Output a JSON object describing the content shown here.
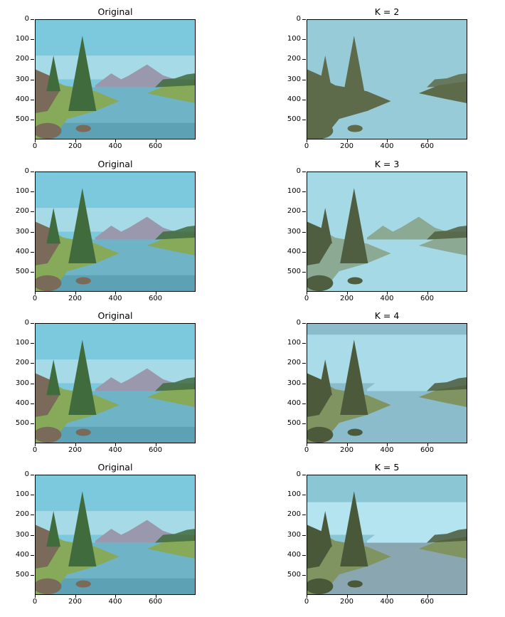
{
  "figure": {
    "panels": [
      {
        "title": "Original",
        "variant": "original"
      },
      {
        "title": "K = 2",
        "variant": "k2"
      },
      {
        "title": "Original",
        "variant": "original"
      },
      {
        "title": "K = 3",
        "variant": "k3"
      },
      {
        "title": "Original",
        "variant": "original"
      },
      {
        "title": "K = 4",
        "variant": "k4"
      },
      {
        "title": "Original",
        "variant": "original"
      },
      {
        "title": "K = 5",
        "variant": "k5"
      }
    ],
    "x_ticks": [
      "0",
      "200",
      "400",
      "600"
    ],
    "y_ticks": [
      "0",
      "100",
      "200",
      "300",
      "400",
      "500"
    ]
  },
  "chart_data": {
    "type": "image-grid",
    "grid": {
      "rows": 4,
      "cols": 2
    },
    "xlim": [
      0,
      800
    ],
    "ylim": [
      600,
      0
    ],
    "x_tick_values": [
      0,
      200,
      400,
      600
    ],
    "y_tick_values": [
      0,
      100,
      200,
      300,
      400,
      500
    ],
    "palettes": {
      "original": [
        "#7cc8dc",
        "#c3e6ef",
        "#9a98ad",
        "#3f6b3d",
        "#86a95a",
        "#7a6a5a",
        "#6fb3c6",
        "#4b8fa1"
      ],
      "k2": [
        "#98cbd8",
        "#5d6b4a"
      ],
      "k3": [
        "#a6d9e6",
        "#8ba993",
        "#4f5e40"
      ],
      "k4": [
        "#8bbccc",
        "#a9dbe8",
        "#7f9460",
        "#4c5a3b"
      ],
      "k5": [
        "#8bc6d4",
        "#b3e4f0",
        "#8aa6b0",
        "#7f9460",
        "#4a583a"
      ]
    }
  }
}
